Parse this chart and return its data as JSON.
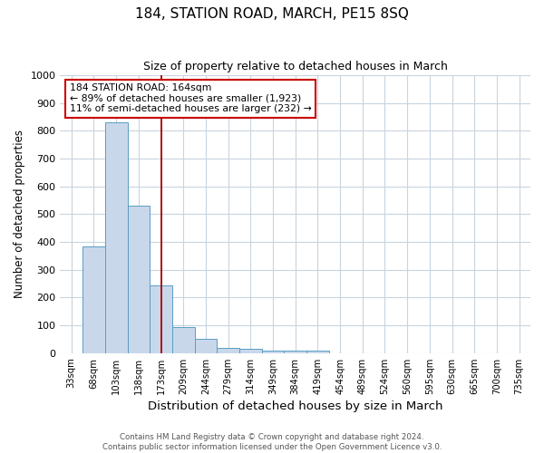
{
  "title": "184, STATION ROAD, MARCH, PE15 8SQ",
  "subtitle": "Size of property relative to detached houses in March",
  "xlabel": "Distribution of detached houses by size in March",
  "ylabel": "Number of detached properties",
  "categories": [
    "33sqm",
    "68sqm",
    "103sqm",
    "138sqm",
    "173sqm",
    "209sqm",
    "244sqm",
    "279sqm",
    "314sqm",
    "349sqm",
    "384sqm",
    "419sqm",
    "454sqm",
    "489sqm",
    "524sqm",
    "560sqm",
    "595sqm",
    "630sqm",
    "665sqm",
    "700sqm",
    "735sqm"
  ],
  "bar_heights": [
    0,
    385,
    830,
    530,
    245,
    95,
    50,
    20,
    15,
    10,
    8,
    8,
    0,
    0,
    0,
    0,
    0,
    0,
    0,
    0,
    0
  ],
  "bar_color": "#c8d8ea",
  "bar_edge_color": "#5a9cc5",
  "ylim": [
    0,
    1000
  ],
  "vline_x_index": 4,
  "vline_color": "#aa0000",
  "annotation_line1": "184 STATION ROAD: 164sqm",
  "annotation_line2": "← 89% of detached houses are smaller (1,923)",
  "annotation_line3": "11% of semi-detached houses are larger (232) →",
  "annotation_box_color": "#ffffff",
  "annotation_box_edge_color": "#cc0000",
  "footer_line1": "Contains HM Land Registry data © Crown copyright and database right 2024.",
  "footer_line2": "Contains public sector information licensed under the Open Government Licence v3.0.",
  "background_color": "#ffffff",
  "grid_color": "#c8d4de"
}
